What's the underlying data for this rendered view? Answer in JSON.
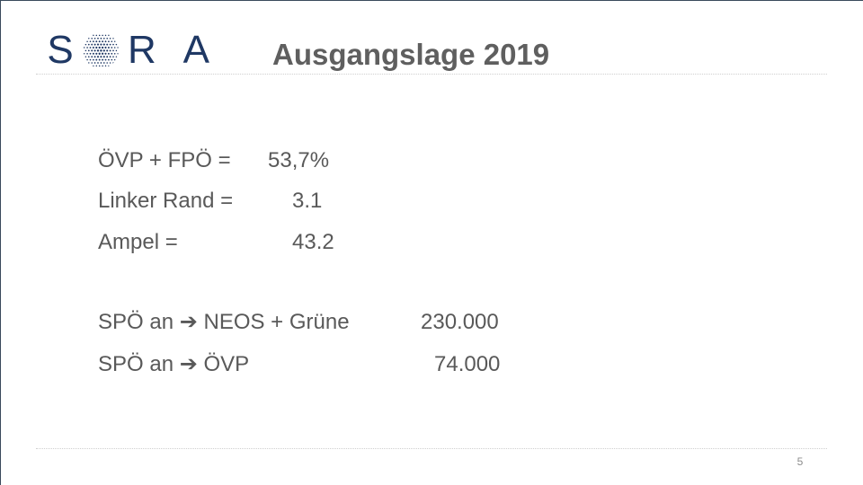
{
  "logo": {
    "left_letter": "S",
    "right_letters": "R A",
    "brand_color": "#1f3864",
    "mark_icon": "dotted-globe-icon"
  },
  "title": "Ausgangslage 2019",
  "lines": [
    {
      "label": "ÖVP + FPÖ =",
      "value": "53,7%"
    },
    {
      "label": "Linker Rand =",
      "value": "3.1"
    },
    {
      "label": "Ampel =",
      "value": "43.2"
    },
    {
      "label": "SPÖ an ➔ NEOS + Grüne",
      "value": "230.000"
    },
    {
      "label": "SPÖ an ➔ ÖVP",
      "value": "74.000"
    }
  ],
  "page_number": "5",
  "colors": {
    "text": "#595959",
    "title": "#5f5f5f",
    "divider": "#cfcfcf"
  }
}
